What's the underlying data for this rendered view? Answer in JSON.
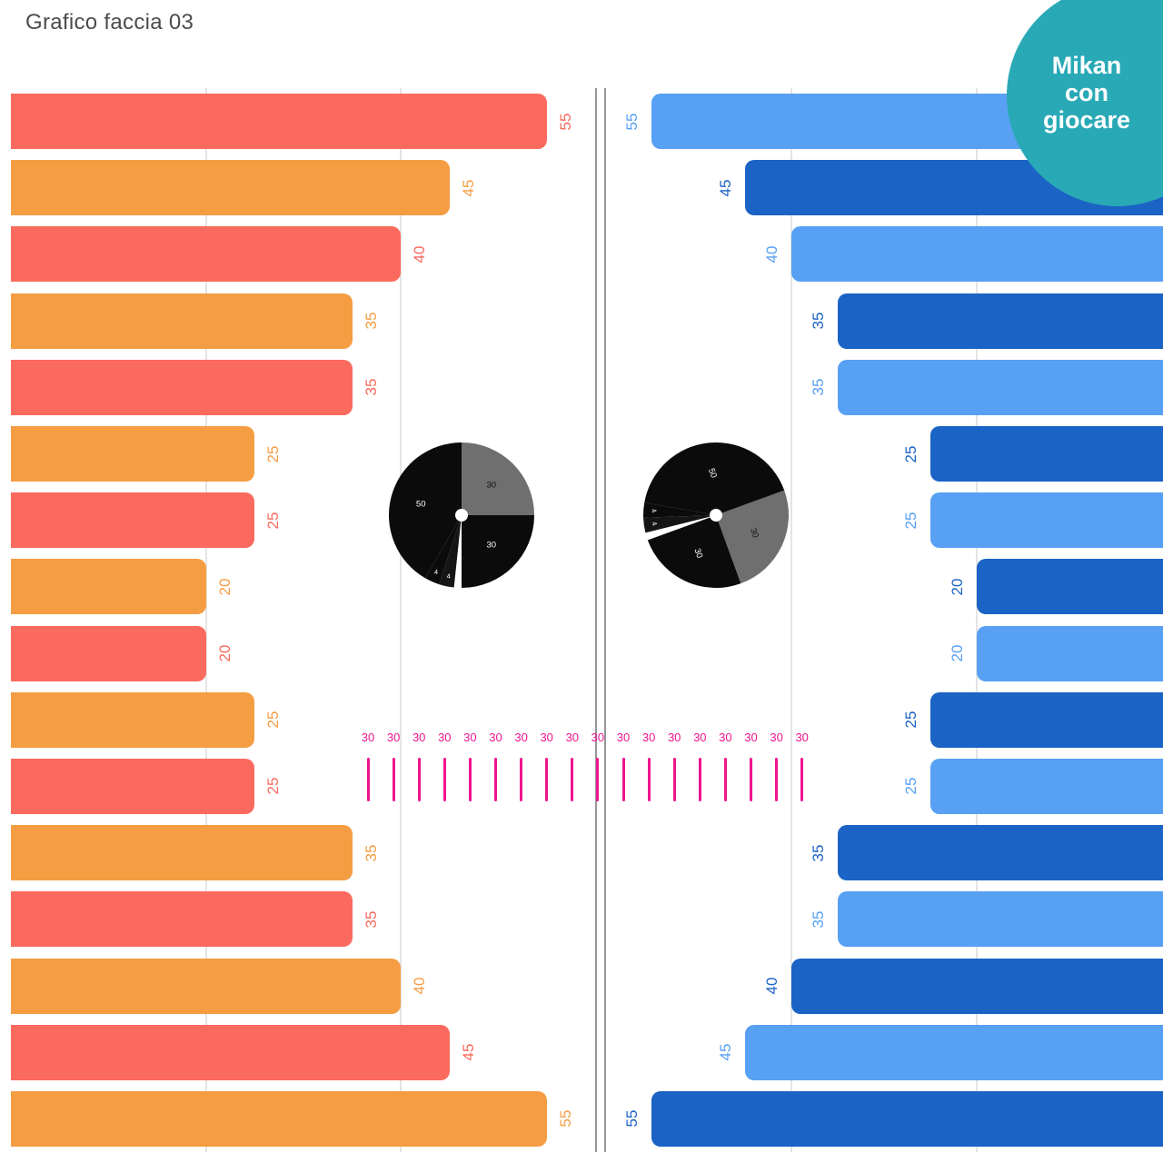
{
  "title": "Grafico faccia 03",
  "badge": {
    "lines": [
      "Mikan",
      "con",
      "giocare"
    ],
    "color": "#29a9b6",
    "text_color": "#ffffff"
  },
  "chart_data": {
    "type": "bar",
    "subtype": "butterfly-face-infographic",
    "axis_max": 60,
    "gridline_values": [
      20,
      40
    ],
    "colors": {
      "gridline": "#e4e4e4",
      "axis": "#969696",
      "left_alternate": [
        "#fa6a5e",
        "#f59d43"
      ],
      "right_alternate": [
        "#58a0f3",
        "#1b63c5"
      ]
    },
    "left_series": {
      "name": "left-bars",
      "values": [
        55,
        45,
        40,
        35,
        35,
        25,
        25,
        20,
        20,
        25,
        25,
        35,
        35,
        40,
        45,
        55
      ]
    },
    "right_series": {
      "name": "right-bars",
      "values": [
        55,
        45,
        40,
        35,
        35,
        25,
        25,
        20,
        20,
        25,
        25,
        35,
        35,
        40,
        45,
        55
      ]
    },
    "ticks": {
      "count": 18,
      "value": "30",
      "color": "#ee158e"
    },
    "eyes": [
      {
        "rotation_deg": 0,
        "slices": [
          {
            "value": 30,
            "color": "#6f6f6f",
            "label": "30",
            "label_color": "#111111"
          },
          {
            "value": 30,
            "color": "#0b0b0b",
            "label": "30",
            "label_color": "#ffffff"
          },
          {
            "value": 2,
            "color": "#ffffff",
            "label": "",
            "label_color": ""
          },
          {
            "value": 4,
            "color": "#151515",
            "label": "4",
            "label_color": "#ffffff"
          },
          {
            "value": 4,
            "color": "#0b0b0b",
            "label": "4",
            "label_color": "#ffffff"
          },
          {
            "value": 50,
            "color": "#0b0b0b",
            "label": "50",
            "label_color": "#ffffff"
          }
        ]
      },
      {
        "rotation_deg": 70,
        "slices": [
          {
            "value": 30,
            "color": "#6f6f6f",
            "label": "30",
            "label_color": "#111111"
          },
          {
            "value": 30,
            "color": "#0b0b0b",
            "label": "30",
            "label_color": "#ffffff"
          },
          {
            "value": 2,
            "color": "#ffffff",
            "label": "",
            "label_color": ""
          },
          {
            "value": 4,
            "color": "#151515",
            "label": "4",
            "label_color": "#ffffff"
          },
          {
            "value": 4,
            "color": "#0b0b0b",
            "label": "4",
            "label_color": "#ffffff"
          },
          {
            "value": 50,
            "color": "#0b0b0b",
            "label": "50",
            "label_color": "#ffffff"
          }
        ]
      }
    ]
  }
}
